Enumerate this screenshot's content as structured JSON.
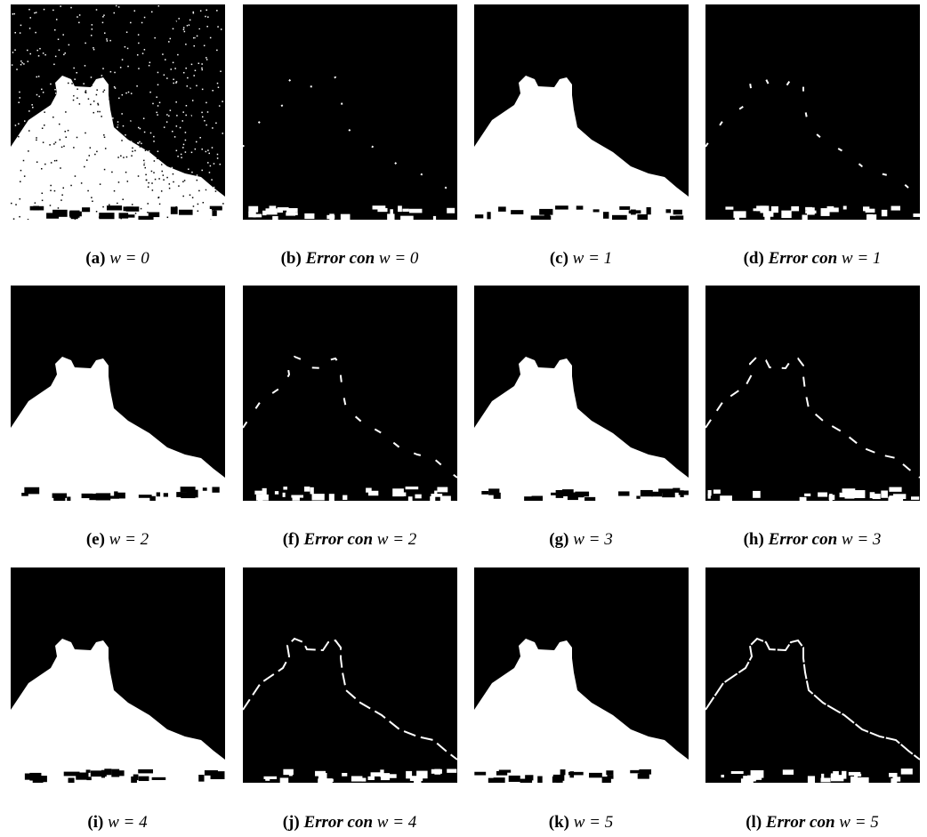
{
  "figure": {
    "panels": [
      {
        "label": "(a)",
        "math": "w = 0"
      },
      {
        "label": "(b)",
        "prefix": "Error con",
        "math": "w = 0"
      },
      {
        "label": "(c)",
        "math": "w = 1"
      },
      {
        "label": "(d)",
        "prefix": "Error con",
        "math": "w = 1"
      },
      {
        "label": "(e)",
        "math": "w = 2"
      },
      {
        "label": "(f)",
        "prefix": "Error con",
        "math": "w = 2"
      },
      {
        "label": "(g)",
        "math": "w = 3"
      },
      {
        "label": "(h)",
        "prefix": "Error con",
        "math": "w = 3"
      },
      {
        "label": "(i)",
        "math": "w = 4"
      },
      {
        "label": "(j)",
        "prefix": "Error con",
        "math": "w = 4"
      },
      {
        "label": "(k)",
        "math": "w = 5"
      },
      {
        "label": "(l)",
        "prefix": "Error con",
        "math": "w = 5"
      }
    ]
  }
}
